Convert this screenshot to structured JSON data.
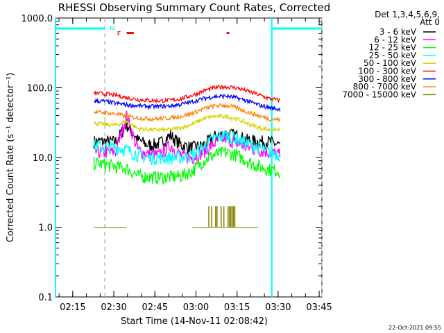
{
  "chart_data": {
    "type": "line",
    "title": "RHESSI Observing Summary Count Rates, Corrected",
    "xlabel": "Start Time (14-Nov-11 02:08:42)",
    "ylabel": "Corrected Count Rate (s⁻¹ detector⁻¹)",
    "yscale": "log",
    "ylim": [
      0.1,
      1000
    ],
    "xlim": [
      0,
      97.3
    ],
    "x_unit": "minutes since 02:08:42",
    "x_ticks": [
      {
        "m": 6.3,
        "label": "02:15"
      },
      {
        "m": 21.3,
        "label": "02:30"
      },
      {
        "m": 36.3,
        "label": "02:45"
      },
      {
        "m": 51.3,
        "label": "03:00"
      },
      {
        "m": 66.3,
        "label": "03:15"
      },
      {
        "m": 81.3,
        "label": "03:30"
      },
      {
        "m": 96.3,
        "label": "03:45"
      }
    ],
    "y_ticks": [
      {
        "v": 1000,
        "label": "1000.0"
      },
      {
        "v": 100,
        "label": "100.0"
      },
      {
        "v": 10,
        "label": "10.0"
      },
      {
        "v": 1,
        "label": "1.0"
      },
      {
        "v": 0.1,
        "label": "0.1"
      }
    ],
    "legend_header": [
      "Det 1,3,4,5,6,9,",
      "Att 0"
    ],
    "legend_position": "right",
    "x": [
      14,
      18,
      22,
      26,
      30,
      34,
      38,
      42,
      46,
      50,
      54,
      58,
      62,
      66,
      70,
      74,
      78,
      82
    ],
    "series": [
      {
        "name": "3 - 6 keV",
        "color": "#000000",
        "values": [
          17,
          17,
          17,
          30,
          18,
          15,
          16,
          21,
          15,
          14,
          15,
          20,
          22,
          21,
          18,
          17,
          17,
          15
        ]
      },
      {
        "name": "6 - 12 keV",
        "color": "#ff00ff",
        "values": [
          12,
          12,
          12,
          40,
          13,
          11,
          11,
          15,
          10.5,
          10,
          12,
          16,
          19,
          16,
          14,
          13,
          12,
          11
        ]
      },
      {
        "name": "12 - 25 keV",
        "color": "#00ff00",
        "values": [
          8.4,
          8,
          7.5,
          7,
          5.5,
          5.3,
          5.2,
          5.3,
          5.5,
          6.5,
          9,
          11,
          12,
          11,
          9,
          7.5,
          6.8,
          6.5
        ]
      },
      {
        "name": "25 - 50 keV",
        "color": "#00ffff",
        "values": [
          15,
          14,
          14,
          13,
          11,
          10,
          10,
          10,
          10,
          11,
          14,
          19,
          21,
          19,
          16,
          14,
          12,
          11
        ]
      },
      {
        "name": "50 - 100 keV",
        "color": "#d4d400",
        "values": [
          31,
          30,
          29,
          33,
          26,
          25,
          25,
          25,
          27,
          30,
          36,
          39,
          39,
          36,
          31,
          27,
          25,
          25
        ]
      },
      {
        "name": "100 - 300 keV",
        "color": "#ff0000",
        "values": [
          83,
          82,
          78,
          72,
          68,
          66,
          65,
          66,
          70,
          78,
          90,
          100,
          104,
          100,
          90,
          80,
          70,
          66
        ]
      },
      {
        "name": "300 - 800 keV",
        "color": "#0000ff",
        "values": [
          65,
          64,
          60,
          57,
          55,
          54,
          54,
          55,
          58,
          63,
          70,
          75,
          76,
          72,
          65,
          57,
          52,
          49
        ]
      },
      {
        "name": "800 - 7000 keV",
        "color": "#ff8000",
        "values": [
          45,
          44,
          42,
          39,
          37,
          36,
          36,
          37,
          39,
          43,
          50,
          55,
          56,
          52,
          45,
          40,
          36,
          35
        ]
      },
      {
        "name": "7000 - 15000 keV",
        "color": "#808000",
        "values": [
          1,
          1,
          1,
          null,
          null,
          null,
          null,
          null,
          null,
          1,
          1,
          2,
          2,
          1,
          1,
          null,
          null,
          null
        ]
      }
    ],
    "annotations": {
      "night_markers": [
        0,
        79
      ],
      "saa_dashed": [
        18,
        97.3
      ],
      "night_label": "N",
      "flare_label": "F",
      "flare_intervals": [
        [
          26,
          28.6
        ],
        [
          62.5,
          63.5
        ]
      ]
    }
  },
  "footer": {
    "timestamp": "22-Oct-2021 09:55"
  }
}
